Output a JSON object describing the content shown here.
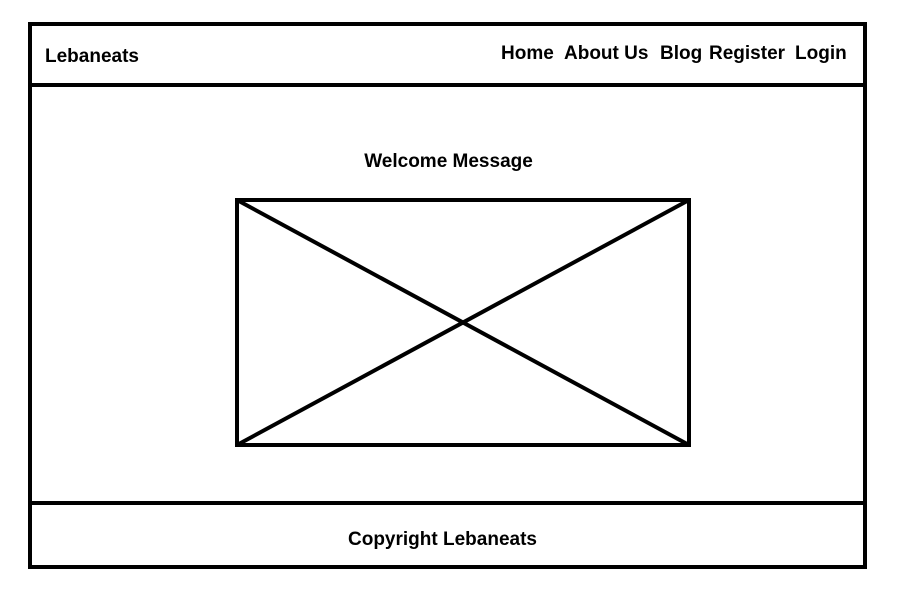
{
  "header": {
    "logo": "Lebaneats",
    "nav": {
      "home": "Home",
      "about": "About Us",
      "blog": "Blog",
      "register": "Register",
      "login": "Login"
    }
  },
  "main": {
    "welcome": "Welcome Message",
    "image_placeholder_icon": "image-placeholder-icon"
  },
  "footer": {
    "copyright": "Copyright Lebaneats"
  },
  "colors": {
    "line": "#000000",
    "background": "#ffffff"
  }
}
